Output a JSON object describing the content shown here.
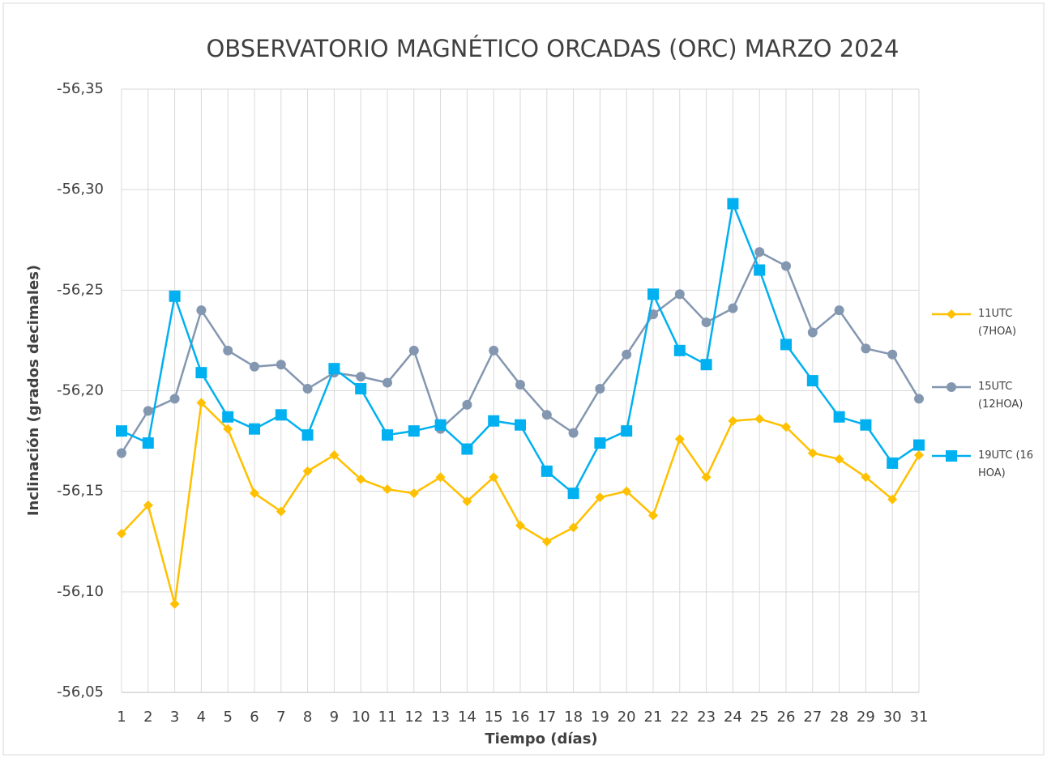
{
  "chart_data": {
    "type": "line",
    "title": "OBSERVATORIO MAGNÉTICO ORCADAS (ORC) MARZO 2024",
    "x_label": "Tiempo (días)",
    "y_label": "Inclinación (grados decimales)",
    "x": [
      1,
      2,
      3,
      4,
      5,
      6,
      7,
      8,
      9,
      10,
      11,
      12,
      13,
      14,
      15,
      16,
      17,
      18,
      19,
      20,
      21,
      22,
      23,
      24,
      25,
      26,
      27,
      28,
      29,
      30,
      31
    ],
    "xlim": [
      1,
      31
    ],
    "xticks": [
      1,
      2,
      3,
      4,
      5,
      6,
      7,
      8,
      9,
      10,
      11,
      12,
      13,
      14,
      15,
      16,
      17,
      18,
      19,
      20,
      21,
      22,
      23,
      24,
      25,
      26,
      27,
      28,
      29,
      30,
      31
    ],
    "ylim": [
      -56.35,
      -56.05
    ],
    "y_reversed": true,
    "yticks": [
      {
        "value": -56.35,
        "label": "-56,35"
      },
      {
        "value": -56.3,
        "label": "-56,30"
      },
      {
        "value": -56.25,
        "label": "-56,25"
      },
      {
        "value": -56.2,
        "label": "-56,20"
      },
      {
        "value": -56.15,
        "label": "-56,15"
      },
      {
        "value": -56.1,
        "label": "-56,10"
      },
      {
        "value": -56.05,
        "label": "-56,05"
      }
    ],
    "grid": true,
    "legend": "right",
    "series": [
      {
        "name": "11UTC (7HOA)",
        "color": "#FFC000",
        "marker": "diamond",
        "values": [
          -56.129,
          -56.143,
          -56.094,
          -56.194,
          -56.181,
          -56.149,
          -56.14,
          -56.16,
          -56.168,
          -56.156,
          -56.151,
          -56.149,
          -56.157,
          -56.145,
          -56.157,
          -56.133,
          -56.125,
          -56.132,
          -56.147,
          -56.15,
          -56.138,
          -56.176,
          -56.157,
          -56.185,
          -56.186,
          -56.182,
          -56.169,
          -56.166,
          -56.157,
          -56.146,
          -56.168
        ]
      },
      {
        "name": "15UTC (12HOA)",
        "color": "#8497B0",
        "marker": "circle",
        "values": [
          -56.169,
          -56.19,
          -56.196,
          -56.24,
          -56.22,
          -56.212,
          -56.213,
          -56.201,
          -56.209,
          -56.207,
          -56.204,
          -56.22,
          -56.181,
          -56.193,
          -56.22,
          -56.203,
          -56.188,
          -56.179,
          -56.201,
          -56.218,
          -56.238,
          -56.248,
          -56.234,
          -56.241,
          -56.269,
          -56.262,
          -56.229,
          -56.24,
          -56.221,
          -56.218,
          -56.196
        ]
      },
      {
        "name": "19UTC (16 HOA)",
        "color": "#00B0F0",
        "marker": "square",
        "values": [
          -56.18,
          -56.174,
          -56.247,
          -56.209,
          -56.187,
          -56.181,
          -56.188,
          -56.178,
          -56.211,
          -56.201,
          -56.178,
          -56.18,
          -56.183,
          -56.171,
          -56.185,
          -56.183,
          -56.16,
          -56.149,
          -56.174,
          -56.18,
          -56.248,
          -56.22,
          -56.213,
          -56.293,
          -56.26,
          -56.223,
          -56.205,
          -56.187,
          -56.183,
          -56.164,
          -56.173
        ]
      }
    ]
  }
}
